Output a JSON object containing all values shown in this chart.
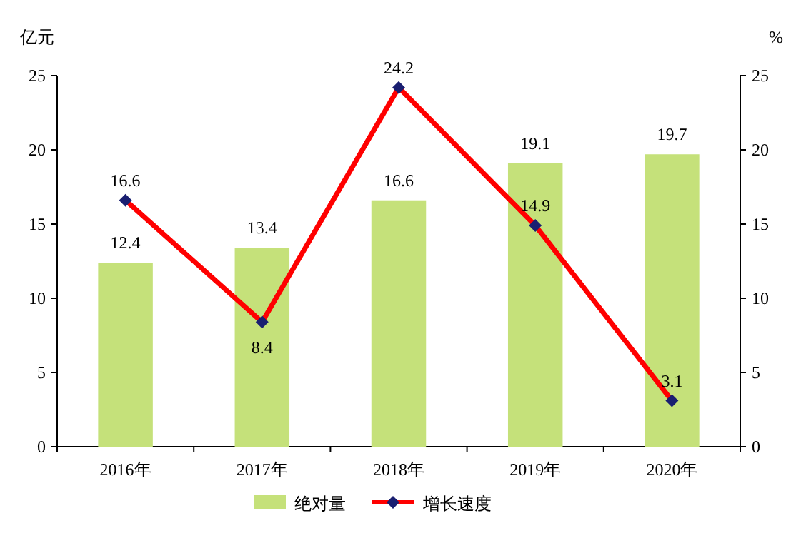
{
  "chart_data": {
    "type": "bar",
    "ylabel": "亿元",
    "y2label": "%",
    "categories": [
      "2016年",
      "2017年",
      "2018年",
      "2019年",
      "2020年"
    ],
    "series": [
      {
        "name": "绝对量",
        "color": "#c5e17a",
        "values": [
          12.4,
          13.4,
          16.6,
          19.1,
          19.7
        ]
      },
      {
        "name": "增长速度",
        "type": "line",
        "axis": "y2",
        "color": "#ff0000",
        "values": [
          16.6,
          8.4,
          24.2,
          14.9,
          3.1
        ]
      }
    ],
    "ylim": [
      0,
      25
    ],
    "yticks": [
      0,
      5,
      10,
      15,
      20,
      25
    ],
    "y2lim": [
      0,
      25
    ],
    "y2ticks": [
      0,
      5,
      10,
      15,
      20,
      25
    ],
    "data_labels": true,
    "legend": "bottom",
    "marker": "diamond",
    "line_style": "solid",
    "grid": false
  }
}
